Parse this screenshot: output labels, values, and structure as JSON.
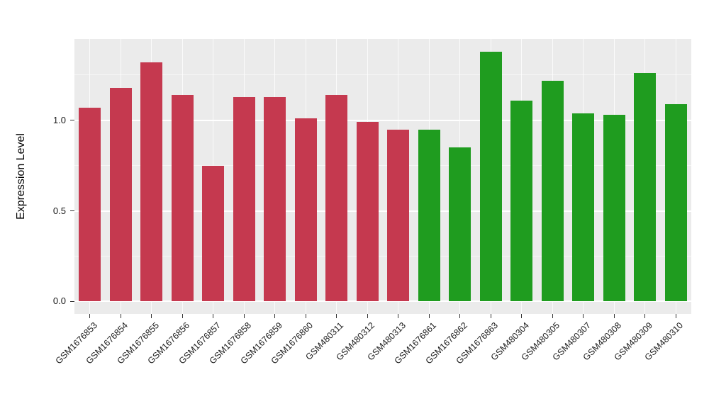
{
  "chart_data": {
    "type": "bar",
    "title": "",
    "xlabel": "",
    "ylabel": "Expression Level",
    "categories": [
      "GSM1676853",
      "GSM1676854",
      "GSM1676855",
      "GSM1676856",
      "GSM1676857",
      "GSM1676858",
      "GSM1676859",
      "GSM1676860",
      "GSM480311",
      "GSM480312",
      "GSM480313",
      "GSM1676861",
      "GSM1676862",
      "GSM1676863",
      "GSM480304",
      "GSM480305",
      "GSM480307",
      "GSM480308",
      "GSM480309",
      "GSM480310"
    ],
    "values": [
      1.07,
      1.18,
      1.32,
      1.14,
      0.75,
      1.13,
      1.13,
      1.01,
      1.14,
      0.99,
      0.95,
      0.95,
      0.85,
      1.38,
      1.11,
      1.22,
      1.04,
      1.03,
      1.26,
      1.09
    ],
    "groups": [
      "red",
      "red",
      "red",
      "red",
      "red",
      "red",
      "red",
      "red",
      "red",
      "red",
      "red",
      "green",
      "green",
      "green",
      "green",
      "green",
      "green",
      "green",
      "green",
      "green"
    ],
    "group_colors": {
      "red": "#C5394F",
      "green": "#1F9C1F"
    },
    "y_major": [
      0.0,
      0.5,
      1.0
    ],
    "ytick_labels": [
      "0.0",
      "0.5",
      "1.0"
    ],
    "y_minor": [
      0.25,
      0.75,
      1.25
    ],
    "ylim": [
      -0.069,
      1.449
    ],
    "bar_width_fraction": 0.72,
    "panel_bg": "#EBEBEB",
    "grid_color": "#FFFFFF",
    "legend": "none",
    "x_label_angle_deg": 45
  }
}
